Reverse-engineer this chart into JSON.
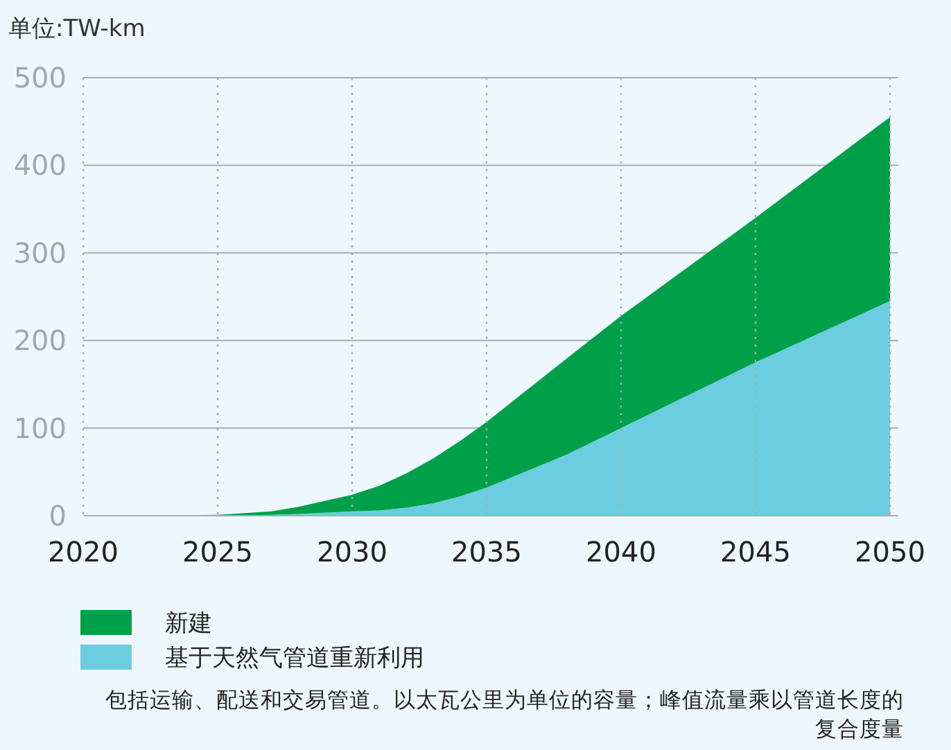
{
  "chart_data": {
    "type": "area",
    "stacked": true,
    "subtitle": "单位:TW-km",
    "x": [
      2020,
      2025,
      2027,
      2028,
      2030,
      2031,
      2032,
      2033,
      2034,
      2035,
      2038,
      2040,
      2045,
      2050
    ],
    "series": [
      {
        "name": "基于天然气管道重新利用",
        "color": "#6ccde0",
        "values": [
          0,
          0,
          1,
          2,
          5,
          6,
          9,
          14,
          22,
          32,
          70,
          100,
          175,
          245
        ]
      },
      {
        "name": "新建",
        "color": "#00a04a",
        "values": [
          0,
          1,
          4,
          8,
          19,
          28,
          39,
          51,
          63,
          75,
          110,
          128,
          165,
          210
        ]
      }
    ],
    "xlim": [
      2020,
      2050
    ],
    "xticks": [
      2020,
      2025,
      2030,
      2035,
      2040,
      2045,
      2050
    ],
    "ylim": [
      0,
      500
    ],
    "yticks": [
      0,
      100,
      200,
      300,
      400,
      500
    ],
    "grid": true,
    "legend": "bottom",
    "annotations": [
      "包括运输、配送和交易管道。以太瓦公里为单位的容量；峰值流量乘以管道长度的复合度量"
    ]
  }
}
